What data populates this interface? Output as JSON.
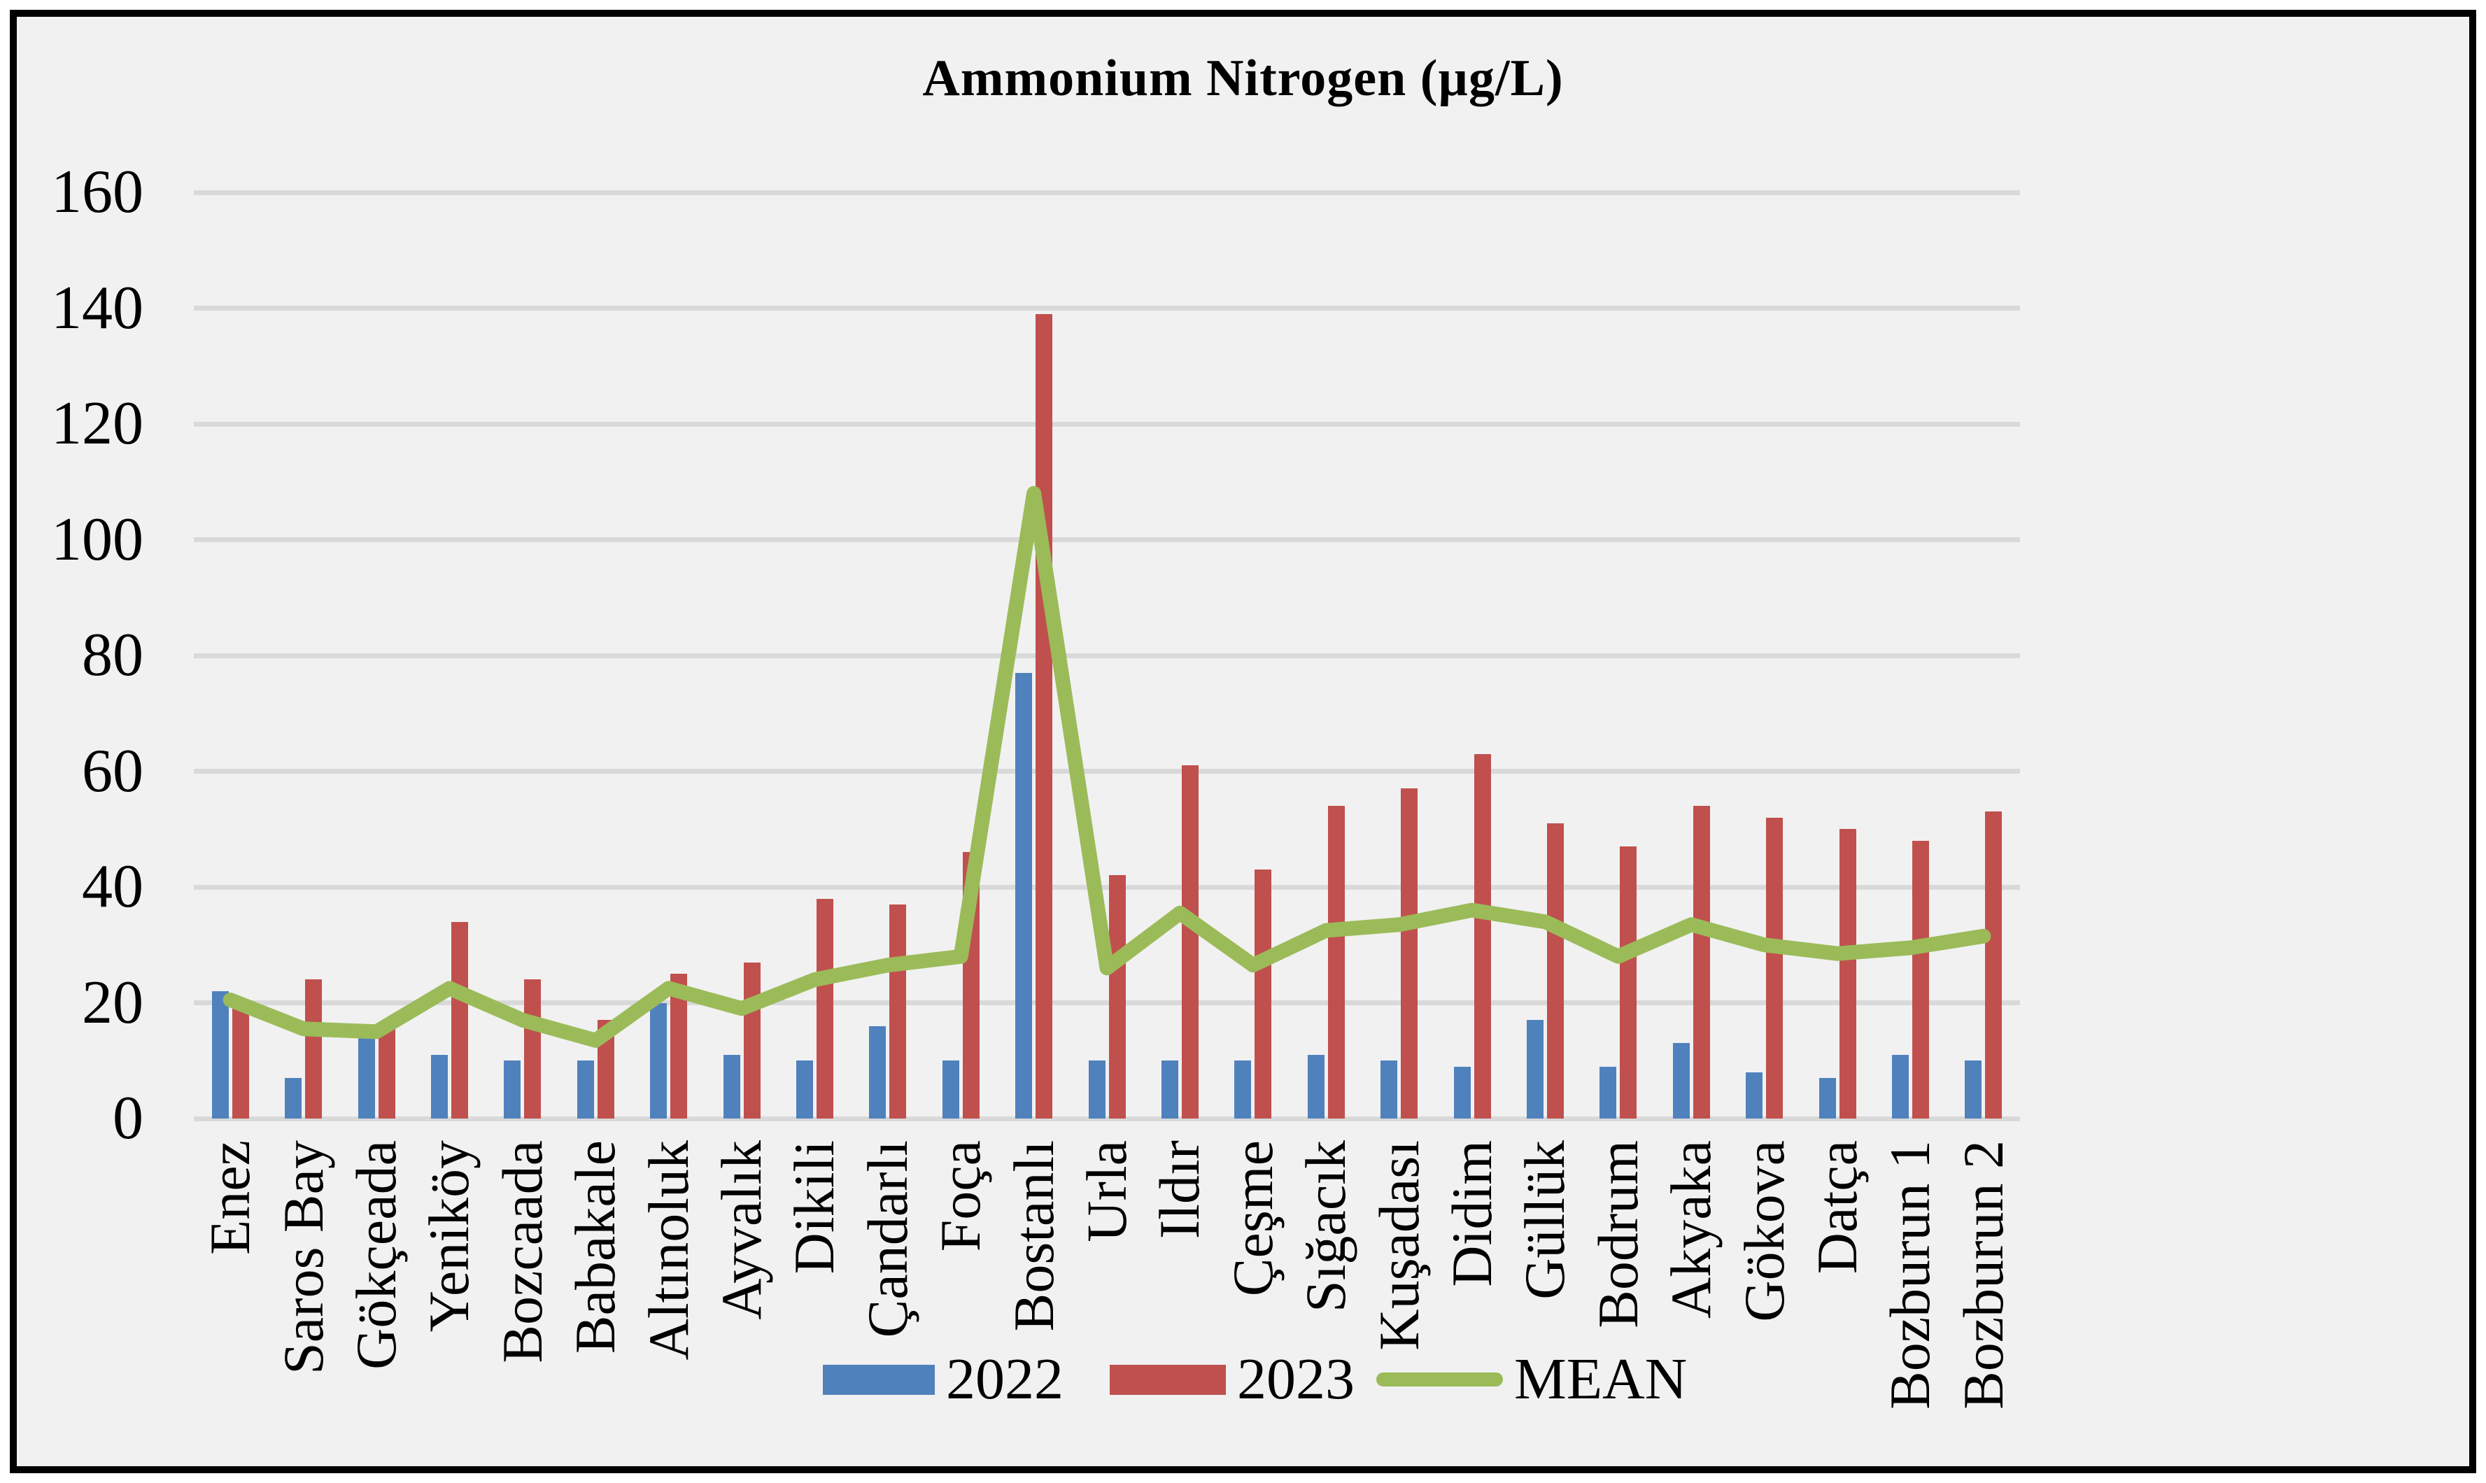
{
  "chart_data": {
    "type": "bar",
    "title": "Ammonium Nitrogen (µg/L)",
    "categories": [
      "Enez",
      "Saros Bay",
      "Gökçeada",
      "Yeniköy",
      "Bozcaada",
      "Babakale",
      "Altınoluk",
      "Ayvalık",
      "Dikili",
      "Çandarlı",
      "Foça",
      "Bostanlı",
      "Urla",
      "Ildır",
      "Çeşme",
      "Sığacık",
      "Kuşadası",
      "Didim",
      "Güllük",
      "Bodrum",
      "Akyaka",
      "Gökova",
      "Datça",
      "Bozburun 1",
      "Bozburun 2"
    ],
    "series": [
      {
        "name": "2022",
        "type": "bar",
        "color": "#4F81BD",
        "values": [
          22,
          7,
          14,
          11,
          10,
          10,
          20,
          11,
          10,
          16,
          10,
          77,
          10,
          10,
          10,
          11,
          10,
          9,
          17,
          9,
          13,
          8,
          7,
          11,
          10
        ]
      },
      {
        "name": "2023",
        "type": "bar",
        "color": "#C0504D",
        "values": [
          19,
          24,
          16,
          34,
          24,
          17,
          25,
          27,
          38,
          37,
          46,
          139,
          42,
          61,
          43,
          54,
          57,
          63,
          51,
          47,
          54,
          52,
          50,
          48,
          53
        ]
      },
      {
        "name": "MEAN",
        "type": "line",
        "color": "#9BBB59",
        "values": [
          20.5,
          15.5,
          15,
          22.5,
          17,
          13.5,
          22.5,
          19,
          24,
          26.5,
          28,
          108,
          26,
          35.5,
          26.5,
          32.5,
          33.5,
          36,
          34,
          28,
          33.5,
          30,
          28.5,
          29.5,
          31.5
        ]
      }
    ],
    "xlabel": "",
    "ylabel": "",
    "ylim": [
      0,
      160
    ],
    "y_tick_step": 20,
    "y_tick_labels": [
      0,
      20,
      40,
      60,
      80,
      100,
      120,
      140,
      160
    ],
    "grid": true,
    "legend_position": "bottom"
  },
  "legend": {
    "items": [
      {
        "label": "2022",
        "color": "#4F81BD",
        "shape": "rect"
      },
      {
        "label": "2023",
        "color": "#C0504D",
        "shape": "rect"
      },
      {
        "label": "MEAN",
        "color": "#9BBB59",
        "shape": "line"
      }
    ]
  },
  "colors": {
    "background": "#F1F1F1",
    "page": "#FFFFFF",
    "gridline": "#D9D9D9",
    "frame": "#000000",
    "text": "#000000"
  }
}
